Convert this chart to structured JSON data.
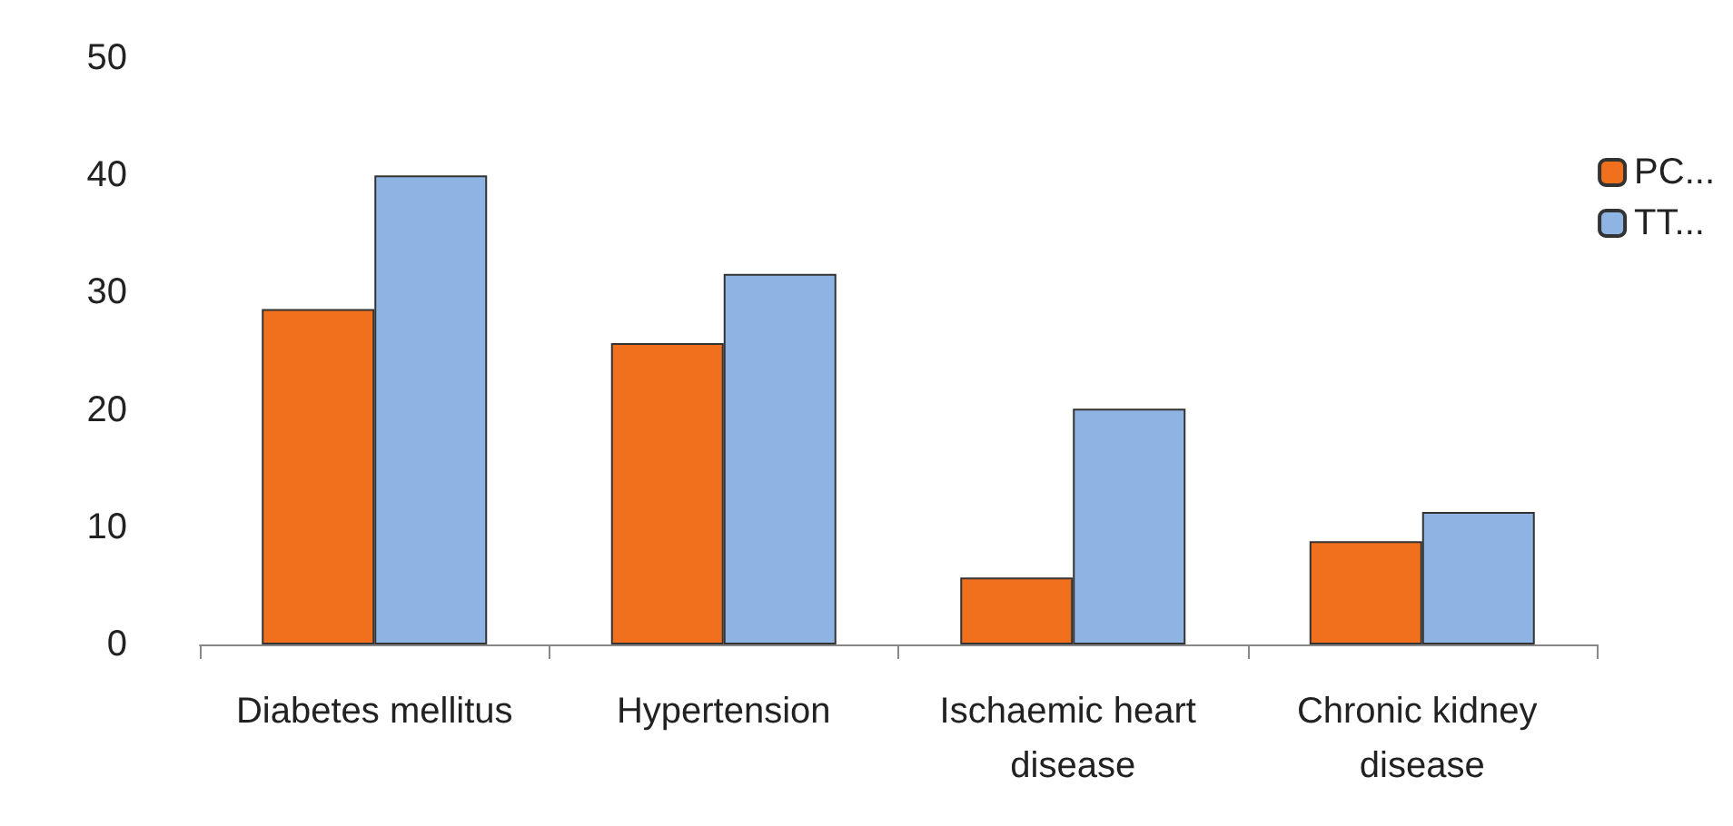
{
  "chart_data": {
    "type": "bar",
    "categories": [
      "Diabetes mellitus",
      "Hypertension",
      "Ischaemic heart disease",
      "Chronic kidney disease"
    ],
    "series": [
      {
        "name": "PC...",
        "color": "#f0701e",
        "values": [
          28.6,
          25.7,
          5.7,
          8.8
        ]
      },
      {
        "name": "TT...",
        "color": "#8db4e2",
        "values": [
          40,
          31.6,
          20.1,
          11.3
        ]
      }
    ],
    "ylim": [
      0,
      50
    ],
    "yticks": [
      0,
      10,
      20,
      30,
      40,
      50
    ],
    "grid": false,
    "legend": "top right"
  }
}
